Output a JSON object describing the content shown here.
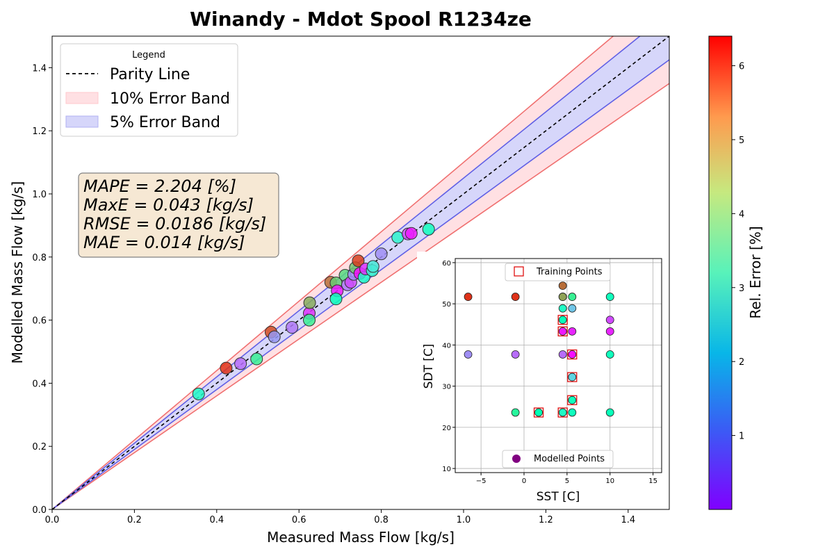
{
  "chart_data": [
    {
      "type": "scatter",
      "title": "Winandy - Mdot Spool R1234ze",
      "xlabel": "Measured Mass Flow [kg/s]",
      "ylabel": "Modelled Mass Flow [kg/s]",
      "xlim": [
        0,
        1.5
      ],
      "ylim": [
        0,
        1.5
      ],
      "xticks": [
        "0.0",
        "0.2",
        "0.4",
        "0.6",
        "0.8",
        "1.0",
        "1.2",
        "1.4"
      ],
      "yticks": [
        "0.0",
        "0.2",
        "0.4",
        "0.6",
        "0.8",
        "1.0",
        "1.2",
        "1.4"
      ],
      "grid": false,
      "legend": {
        "title": "Legend",
        "position": "top-left",
        "entries": [
          "Parity Line",
          "10% Error Band",
          "5% Error Band"
        ]
      },
      "colors": {
        "parity_line": "#000000",
        "band_10_fill": "#ffe0e3",
        "band_10_edge": "#f07070",
        "band_5_fill": "#d6d6fa",
        "band_5_edge": "#6060e6"
      },
      "colorbar": {
        "label": "Rel. Error [%]",
        "ticks": [
          "1",
          "2",
          "3",
          "4",
          "5",
          "6"
        ],
        "range": [
          0,
          6.4
        ],
        "colormap": "rainbow"
      },
      "stats_box": [
        "MAPE = 2.204 [%]",
        "MaxE = 0.043 [kg/s]",
        "RMSE = 0.0186 [kg/s]",
        "MAE = 0.014 [kg/s]"
      ],
      "points": [
        {
          "x": 0.356,
          "y": 0.366,
          "err": 2.8
        },
        {
          "x": 0.423,
          "y": 0.448,
          "err": 6.0
        },
        {
          "x": 0.458,
          "y": 0.462,
          "err": 0.9
        },
        {
          "x": 0.497,
          "y": 0.477,
          "err": 3.9
        },
        {
          "x": 0.532,
          "y": 0.562,
          "err": 5.8
        },
        {
          "x": 0.54,
          "y": 0.547,
          "err": 1.3
        },
        {
          "x": 0.583,
          "y": 0.577,
          "err": 1.0
        },
        {
          "x": 0.625,
          "y": 0.622,
          "err": 0.4
        },
        {
          "x": 0.626,
          "y": 0.655,
          "err": 4.9
        },
        {
          "x": 0.625,
          "y": 0.6,
          "err": 3.9
        },
        {
          "x": 0.677,
          "y": 0.72,
          "err": 5.5
        },
        {
          "x": 0.69,
          "y": 0.718,
          "err": 4.5
        },
        {
          "x": 0.693,
          "y": 0.693,
          "err": 0.2
        },
        {
          "x": 0.69,
          "y": 0.667,
          "err": 3.1
        },
        {
          "x": 0.712,
          "y": 0.742,
          "err": 4.3
        },
        {
          "x": 0.718,
          "y": 0.712,
          "err": 1.0
        },
        {
          "x": 0.726,
          "y": 0.72,
          "err": 0.6
        },
        {
          "x": 0.733,
          "y": 0.745,
          "err": 1.2
        },
        {
          "x": 0.737,
          "y": 0.766,
          "err": 4.6
        },
        {
          "x": 0.744,
          "y": 0.788,
          "err": 5.9
        },
        {
          "x": 0.748,
          "y": 0.748,
          "err": 0.1
        },
        {
          "x": 0.758,
          "y": 0.736,
          "err": 2.8
        },
        {
          "x": 0.762,
          "y": 0.762,
          "err": 0.4
        },
        {
          "x": 0.778,
          "y": 0.757,
          "err": 2.6
        },
        {
          "x": 0.78,
          "y": 0.77,
          "err": 2.3
        },
        {
          "x": 0.8,
          "y": 0.81,
          "err": 1.2
        },
        {
          "x": 0.84,
          "y": 0.862,
          "err": 2.6
        },
        {
          "x": 0.865,
          "y": 0.873,
          "err": 0.6
        },
        {
          "x": 0.873,
          "y": 0.875,
          "err": 0.2
        },
        {
          "x": 0.915,
          "y": 0.888,
          "err": 3.0
        }
      ]
    },
    {
      "type": "scatter",
      "xlabel": "SST [C]",
      "ylabel": "SDT [C]",
      "xlim": [
        -8,
        16
      ],
      "ylim": [
        9,
        61
      ],
      "xticks": [
        "−5",
        "0",
        "5",
        "10",
        "15"
      ],
      "yticks": [
        "10",
        "20",
        "30",
        "40",
        "50",
        "60"
      ],
      "grid": true,
      "legend_top": "Training Points",
      "legend_bottom": "Modelled Points",
      "colors": {
        "training_marker": "#e01010",
        "modelled_marker": "#800080"
      },
      "training_points": [
        {
          "x": 1.7,
          "y": 23.6
        },
        {
          "x": 4.5,
          "y": 23.6
        },
        {
          "x": 5.6,
          "y": 26.6
        },
        {
          "x": 5.6,
          "y": 32.2
        },
        {
          "x": 5.6,
          "y": 37.7
        },
        {
          "x": 4.5,
          "y": 43.3
        },
        {
          "x": 4.5,
          "y": 46.1
        }
      ],
      "modelled_points": [
        {
          "x": -6.5,
          "y": 51.7,
          "err": 6.0
        },
        {
          "x": -1.0,
          "y": 51.7,
          "err": 6.0
        },
        {
          "x": 4.5,
          "y": 54.4,
          "err": 5.5
        },
        {
          "x": 4.5,
          "y": 51.7,
          "err": 4.9
        },
        {
          "x": 4.5,
          "y": 51.7,
          "err": 5.0
        },
        {
          "x": 5.6,
          "y": 51.7,
          "err": 3.9
        },
        {
          "x": 10.0,
          "y": 51.7,
          "err": 3.0
        },
        {
          "x": 4.5,
          "y": 48.9,
          "err": 2.8
        },
        {
          "x": 5.6,
          "y": 48.9,
          "err": 1.8
        },
        {
          "x": 4.5,
          "y": 46.1,
          "err": 3.1
        },
        {
          "x": 10.0,
          "y": 46.1,
          "err": 0.6
        },
        {
          "x": 4.5,
          "y": 43.3,
          "err": 0.2
        },
        {
          "x": 5.6,
          "y": 43.3,
          "err": 0.3
        },
        {
          "x": 10.0,
          "y": 43.3,
          "err": 0.3
        },
        {
          "x": -6.5,
          "y": 37.7,
          "err": 1.2
        },
        {
          "x": -1.0,
          "y": 37.7,
          "err": 0.9
        },
        {
          "x": 4.5,
          "y": 37.7,
          "err": 0.9
        },
        {
          "x": 5.6,
          "y": 37.7,
          "err": 0.1
        },
        {
          "x": 10.0,
          "y": 37.7,
          "err": 3.0
        },
        {
          "x": 5.6,
          "y": 32.2,
          "err": 2.0
        },
        {
          "x": 5.6,
          "y": 26.6,
          "err": 3.0
        },
        {
          "x": -1.0,
          "y": 23.6,
          "err": 3.7
        },
        {
          "x": 1.7,
          "y": 23.6,
          "err": 3.2
        },
        {
          "x": 4.5,
          "y": 23.6,
          "err": 2.8
        },
        {
          "x": 5.6,
          "y": 23.6,
          "err": 3.0
        },
        {
          "x": 10.0,
          "y": 23.6,
          "err": 3.1
        }
      ]
    }
  ]
}
